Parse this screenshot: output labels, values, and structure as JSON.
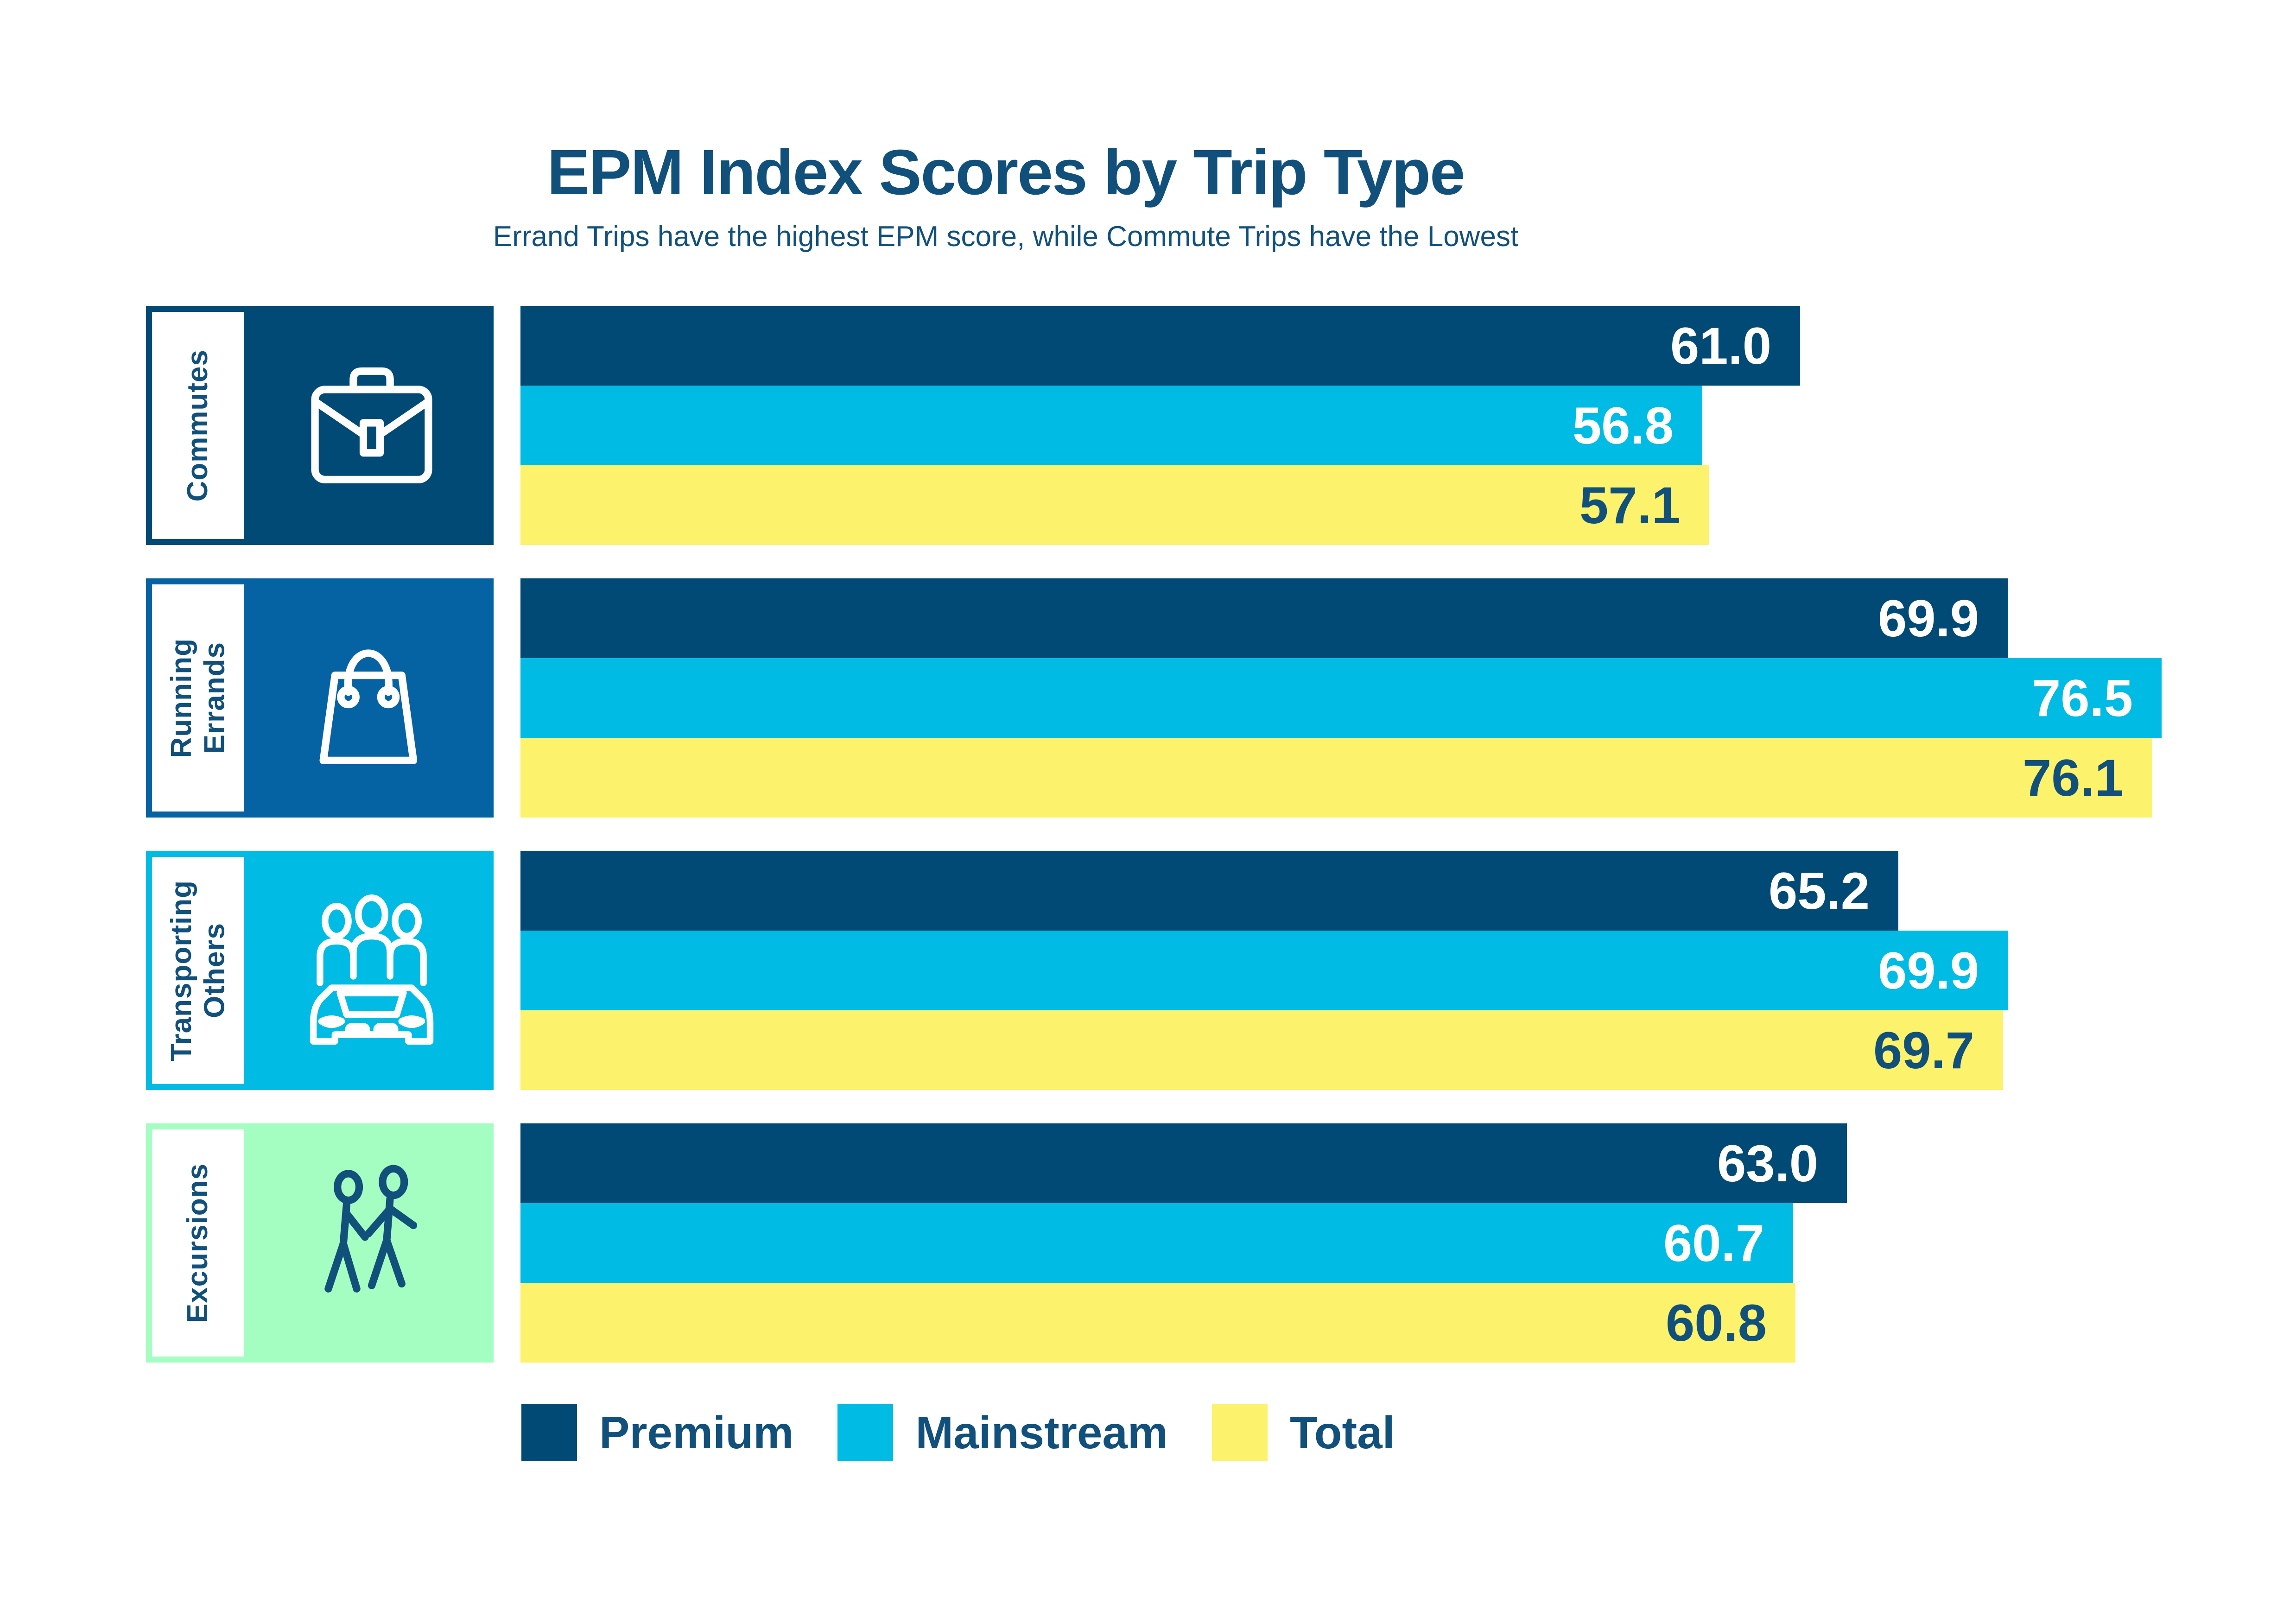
{
  "header": {
    "title": "EPM Index Scores by Trip Type",
    "subtitle": "Errand Trips have the highest EPM score, while Commute Trips have the Lowest"
  },
  "colors": {
    "navy": "#004a75",
    "cyan": "#00bce4",
    "yellow": "#fcf26b",
    "medium_blue": "#0663a3",
    "mint_green": "#a5fec1",
    "text_navy": "#11507b",
    "white": "#ffffff"
  },
  "chart_data": {
    "type": "bar",
    "orientation": "horizontal",
    "title": "EPM Index Scores by Trip Type",
    "subtitle": "Errand Trips have the highest EPM score, while Commute Trips have the Lowest",
    "categories": [
      "Commutes",
      "Running Errands",
      "Transporting Others",
      "Excursions"
    ],
    "series": [
      {
        "name": "Premium",
        "color": "#004a75",
        "value_text_color": "#ffffff",
        "values": [
          61.0,
          69.9,
          65.2,
          63.0
        ]
      },
      {
        "name": "Mainstream",
        "color": "#00bce4",
        "value_text_color": "#ffffff",
        "values": [
          56.8,
          76.5,
          69.9,
          60.7
        ]
      },
      {
        "name": "Total",
        "color": "#fcf26b",
        "value_text_color": "#11507b",
        "values": [
          57.1,
          76.1,
          69.7,
          60.8
        ]
      }
    ],
    "value_labels_shown": true,
    "value_label_decimals": 1,
    "xlim": [
      6,
      80
    ],
    "axis_shown": false,
    "grid": false,
    "legend_position": "bottom"
  },
  "rows": [
    {
      "label_lines": "Commutes",
      "icon": "briefcase-icon",
      "tile_color": "#004a75",
      "icon_color": "#ffffff"
    },
    {
      "label_lines": "Running\nErrands",
      "icon": "shopping-bag-icon",
      "tile_color": "#0663a3",
      "icon_color": "#ffffff"
    },
    {
      "label_lines": "Transporting\nOthers",
      "icon": "car-passengers-icon",
      "tile_color": "#00bce4",
      "icon_color": "#ffffff"
    },
    {
      "label_lines": "Excursions",
      "icon": "walking-people-icon",
      "tile_color": "#a5fec1",
      "icon_color": "#11507b"
    }
  ],
  "legend": [
    {
      "label": "Premium",
      "color": "#004a75"
    },
    {
      "label": "Mainstream",
      "color": "#00bce4"
    },
    {
      "label": "Total",
      "color": "#fcf26b"
    }
  ]
}
